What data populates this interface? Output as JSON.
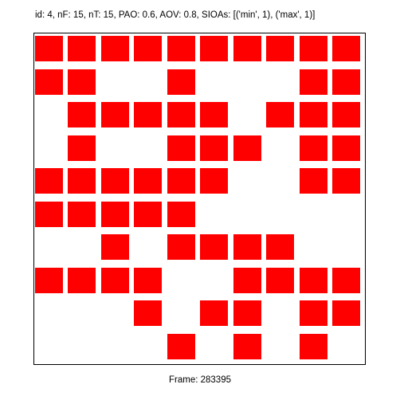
{
  "header": {
    "label": "id: 4, nF: 15, nT: 15, PAO: 0.6, AOV: 0.8, SIOAs: [('min', 1), ('max', 1)]"
  },
  "footer": {
    "frame_label": "Frame: 283395"
  },
  "grid": {
    "rows": 10,
    "cols": 10,
    "fill_color": "#ff0000",
    "filled_cells": [
      [
        1,
        1,
        1,
        1,
        1,
        1,
        1,
        1,
        1,
        1
      ],
      [
        1,
        1,
        0,
        0,
        1,
        0,
        0,
        0,
        1,
        1
      ],
      [
        0,
        1,
        1,
        1,
        1,
        1,
        0,
        1,
        1,
        1
      ],
      [
        0,
        1,
        0,
        0,
        1,
        1,
        1,
        0,
        1,
        1
      ],
      [
        1,
        1,
        1,
        1,
        1,
        1,
        0,
        0,
        1,
        1
      ],
      [
        1,
        1,
        1,
        1,
        1,
        0,
        0,
        0,
        0,
        0
      ],
      [
        0,
        0,
        1,
        0,
        1,
        1,
        1,
        1,
        0,
        0
      ],
      [
        1,
        1,
        1,
        1,
        0,
        0,
        1,
        1,
        1,
        1
      ],
      [
        0,
        0,
        0,
        1,
        0,
        1,
        1,
        0,
        1,
        1
      ],
      [
        0,
        0,
        0,
        0,
        1,
        0,
        1,
        0,
        1,
        0
      ]
    ]
  }
}
